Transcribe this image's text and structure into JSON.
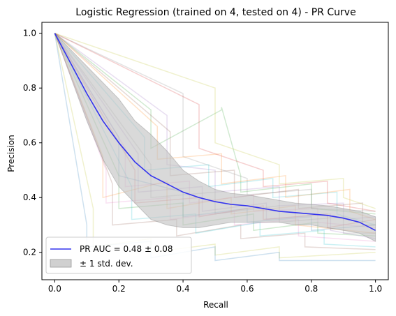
{
  "chart_data": {
    "type": "line",
    "title": "Logistic Regression (trained on 4, tested on 4) -  PR Curve",
    "xlabel": "Recall",
    "ylabel": "Precision",
    "xlim": [
      -0.04,
      1.04
    ],
    "ylim": [
      0.1,
      1.04
    ],
    "xticks": [
      0.0,
      0.2,
      0.4,
      0.6,
      0.8,
      1.0
    ],
    "yticks": [
      0.2,
      0.4,
      0.6,
      0.8,
      1.0
    ],
    "xtick_labels": [
      "0.0",
      "0.2",
      "0.4",
      "0.6",
      "0.8",
      "1.0"
    ],
    "ytick_labels": [
      "0.2",
      "0.4",
      "0.6",
      "0.8",
      "1.0"
    ],
    "grid": false,
    "legend": {
      "placement": "lower-left",
      "entries": [
        {
          "label": "PR AUC = 0.48 ± 0.08",
          "kind": "line",
          "color": "#3333ee"
        },
        {
          "label": "± 1 std. dev.",
          "kind": "patch",
          "color": "#c0c0c0"
        }
      ]
    },
    "mean_curve": {
      "name": "PR AUC = 0.48 ± 0.08",
      "color": "#3333ee",
      "x": [
        0.0,
        0.05,
        0.1,
        0.15,
        0.2,
        0.25,
        0.3,
        0.35,
        0.4,
        0.45,
        0.5,
        0.55,
        0.6,
        0.65,
        0.7,
        0.75,
        0.8,
        0.85,
        0.9,
        0.95,
        1.0
      ],
      "y": [
        1.0,
        0.89,
        0.78,
        0.68,
        0.6,
        0.53,
        0.48,
        0.45,
        0.42,
        0.4,
        0.385,
        0.375,
        0.37,
        0.36,
        0.35,
        0.345,
        0.34,
        0.335,
        0.325,
        0.31,
        0.28
      ]
    },
    "std_band": {
      "name": "± 1 std. dev.",
      "color": "#c0c0c0",
      "x": [
        0.0,
        0.05,
        0.1,
        0.15,
        0.2,
        0.25,
        0.3,
        0.35,
        0.4,
        0.45,
        0.5,
        0.55,
        0.6,
        0.65,
        0.7,
        0.75,
        0.8,
        0.85,
        0.9,
        0.95,
        1.0
      ],
      "upper": [
        1.0,
        0.94,
        0.88,
        0.82,
        0.76,
        0.68,
        0.63,
        0.57,
        0.5,
        0.46,
        0.43,
        0.415,
        0.41,
        0.4,
        0.39,
        0.38,
        0.375,
        0.37,
        0.36,
        0.35,
        0.33
      ],
      "lower": [
        1.0,
        0.84,
        0.68,
        0.54,
        0.44,
        0.38,
        0.32,
        0.3,
        0.29,
        0.29,
        0.3,
        0.31,
        0.31,
        0.31,
        0.31,
        0.3,
        0.3,
        0.29,
        0.28,
        0.27,
        0.24
      ]
    },
    "fold_curves": [
      {
        "color": "#1f77b4",
        "x": [
          0,
          0.2,
          0.2,
          0.4,
          0.4,
          0.6,
          0.6,
          0.8,
          0.8,
          1.0
        ],
        "y": [
          1.0,
          0.62,
          0.48,
          0.42,
          0.33,
          0.36,
          0.31,
          0.33,
          0.28,
          0.3
        ]
      },
      {
        "color": "#ff7f0e",
        "x": [
          0,
          0.15,
          0.15,
          0.35,
          0.35,
          0.55,
          0.55,
          0.75,
          0.75,
          1.0
        ],
        "y": [
          1.0,
          0.55,
          0.4,
          0.46,
          0.36,
          0.4,
          0.34,
          0.37,
          0.3,
          0.27
        ]
      },
      {
        "color": "#2ca02c",
        "x": [
          0,
          0.3,
          0.3,
          0.52,
          0.52,
          0.58,
          0.58,
          0.8,
          0.8,
          1.0
        ],
        "y": [
          1.0,
          0.72,
          0.58,
          0.72,
          0.73,
          0.48,
          0.42,
          0.45,
          0.36,
          0.34
        ]
      },
      {
        "color": "#d62728",
        "x": [
          0,
          0.25,
          0.25,
          0.45,
          0.45,
          0.65,
          0.65,
          0.85,
          0.85,
          1.0
        ],
        "y": [
          1.0,
          0.5,
          0.38,
          0.4,
          0.33,
          0.37,
          0.32,
          0.34,
          0.29,
          0.32
        ]
      },
      {
        "color": "#9467bd",
        "x": [
          0,
          0.35,
          0.35,
          0.5,
          0.5,
          0.7,
          0.7,
          0.9,
          0.9,
          1.0
        ],
        "y": [
          1.0,
          0.7,
          0.52,
          0.5,
          0.42,
          0.44,
          0.37,
          0.38,
          0.32,
          0.33
        ]
      },
      {
        "color": "#8c564b",
        "x": [
          0,
          0.18,
          0.18,
          0.38,
          0.38,
          0.58,
          0.58,
          0.78,
          0.78,
          1.0
        ],
        "y": [
          1.0,
          0.45,
          0.3,
          0.32,
          0.26,
          0.3,
          0.25,
          0.27,
          0.22,
          0.21
        ]
      },
      {
        "color": "#e377c2",
        "x": [
          0,
          0.22,
          0.22,
          0.42,
          0.42,
          0.62,
          0.62,
          0.82,
          0.82,
          1.0
        ],
        "y": [
          1.0,
          0.58,
          0.44,
          0.46,
          0.38,
          0.41,
          0.35,
          0.36,
          0.31,
          0.29
        ]
      },
      {
        "color": "#7f7f7f",
        "x": [
          0,
          0.4,
          0.4,
          0.6,
          0.6,
          0.8,
          0.8,
          1.0
        ],
        "y": [
          1.0,
          0.78,
          0.55,
          0.47,
          0.41,
          0.43,
          0.36,
          0.35
        ]
      },
      {
        "color": "#bcbd22",
        "x": [
          0,
          0.12,
          0.12,
          0.3,
          0.3,
          0.5,
          0.5,
          0.7,
          0.7,
          1.0
        ],
        "y": [
          1.0,
          0.36,
          0.22,
          0.25,
          0.2,
          0.23,
          0.19,
          0.22,
          0.18,
          0.2
        ]
      },
      {
        "color": "#17becf",
        "x": [
          0,
          0.28,
          0.28,
          0.48,
          0.48,
          0.68,
          0.68,
          0.88,
          0.88,
          1.0
        ],
        "y": [
          1.0,
          0.62,
          0.5,
          0.52,
          0.44,
          0.47,
          0.4,
          0.42,
          0.34,
          0.3
        ]
      },
      {
        "color": "#1f77b4",
        "x": [
          0,
          0.1,
          0.1,
          0.3,
          0.3,
          0.5,
          0.5,
          0.7,
          0.7,
          1.0
        ],
        "y": [
          1.0,
          0.3,
          0.22,
          0.24,
          0.18,
          0.22,
          0.17,
          0.2,
          0.17,
          0.17
        ]
      },
      {
        "color": "#ff7f0e",
        "x": [
          0,
          0.32,
          0.32,
          0.52,
          0.52,
          0.72,
          0.72,
          0.92,
          0.92,
          1.0
        ],
        "y": [
          1.0,
          0.66,
          0.54,
          0.56,
          0.45,
          0.48,
          0.4,
          0.43,
          0.35,
          0.32
        ]
      },
      {
        "color": "#2ca02c",
        "x": [
          0,
          0.2,
          0.2,
          0.4,
          0.4,
          0.62,
          0.62,
          0.82,
          0.82,
          1.0
        ],
        "y": [
          1.0,
          0.48,
          0.36,
          0.38,
          0.3,
          0.34,
          0.28,
          0.31,
          0.27,
          0.26
        ]
      },
      {
        "color": "#d62728",
        "x": [
          0,
          0.45,
          0.45,
          0.65,
          0.65,
          0.85,
          0.85,
          1.0
        ],
        "y": [
          1.0,
          0.74,
          0.58,
          0.5,
          0.44,
          0.46,
          0.38,
          0.35
        ]
      },
      {
        "color": "#9467bd",
        "x": [
          0,
          0.26,
          0.26,
          0.46,
          0.46,
          0.66,
          0.66,
          0.86,
          0.86,
          1.0
        ],
        "y": [
          1.0,
          0.56,
          0.42,
          0.44,
          0.35,
          0.38,
          0.32,
          0.34,
          0.28,
          0.25
        ]
      },
      {
        "color": "#8c564b",
        "x": [
          0,
          0.36,
          0.36,
          0.56,
          0.56,
          0.76,
          0.76,
          0.96,
          0.96,
          1.0
        ],
        "y": [
          1.0,
          0.64,
          0.48,
          0.5,
          0.4,
          0.43,
          0.36,
          0.38,
          0.3,
          0.3
        ]
      },
      {
        "color": "#e377c2",
        "x": [
          0,
          0.16,
          0.16,
          0.36,
          0.36,
          0.56,
          0.56,
          0.76,
          0.76,
          1.0
        ],
        "y": [
          1.0,
          0.5,
          0.38,
          0.4,
          0.32,
          0.35,
          0.3,
          0.32,
          0.26,
          0.24
        ]
      },
      {
        "color": "#7f7f7f",
        "x": [
          0,
          0.3,
          0.3,
          0.5,
          0.5,
          0.7,
          0.7,
          0.9,
          0.9,
          1.0
        ],
        "y": [
          1.0,
          0.52,
          0.4,
          0.42,
          0.34,
          0.37,
          0.31,
          0.33,
          0.27,
          0.27
        ]
      },
      {
        "color": "#bcbd22",
        "x": [
          0,
          0.5,
          0.5,
          0.7,
          0.7,
          0.9,
          0.9,
          1.0
        ],
        "y": [
          1.0,
          0.8,
          0.6,
          0.52,
          0.45,
          0.47,
          0.4,
          0.36
        ]
      },
      {
        "color": "#17becf",
        "x": [
          0,
          0.24,
          0.24,
          0.44,
          0.44,
          0.64,
          0.64,
          0.84,
          0.84,
          1.0
        ],
        "y": [
          1.0,
          0.44,
          0.32,
          0.34,
          0.27,
          0.31,
          0.26,
          0.28,
          0.23,
          0.22
        ]
      }
    ]
  }
}
